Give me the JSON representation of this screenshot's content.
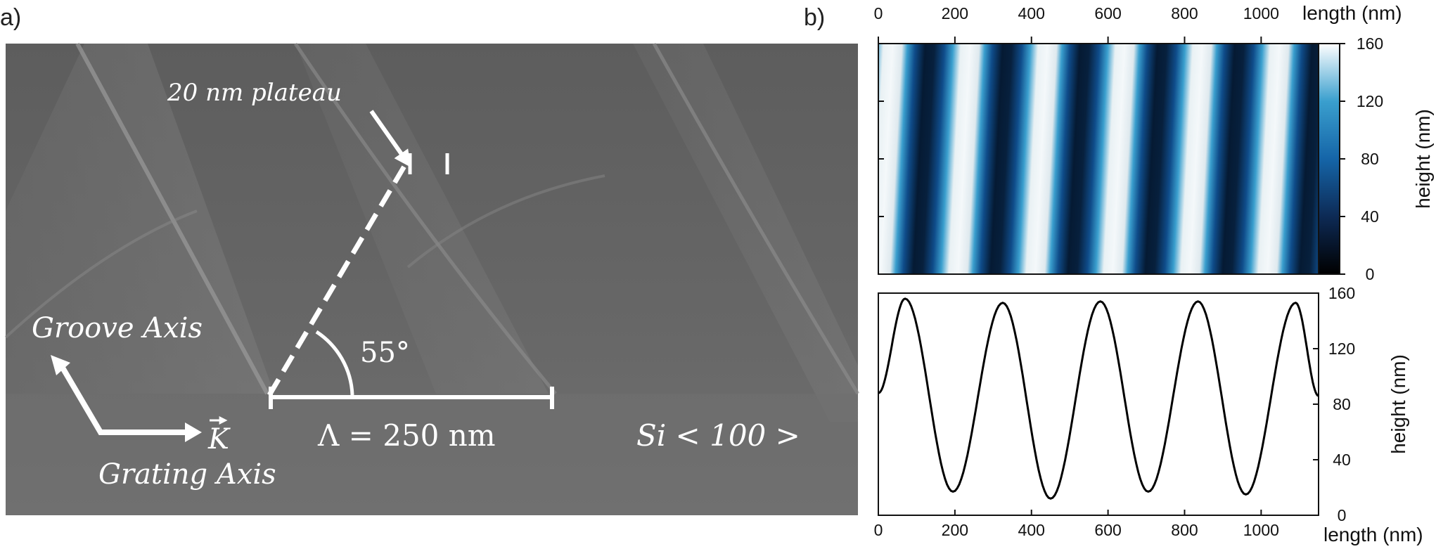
{
  "panel_a": {
    "label": "a)",
    "annotations": {
      "plateau": "20 nm plateau",
      "angle": "55°",
      "period": "Λ = 250 nm",
      "groove_axis": "Groove Axis",
      "k_vector": "K",
      "grating_axis": "Grating Axis",
      "substrate": "Si < 100 >"
    }
  },
  "panel_b": {
    "label": "b)",
    "afm_map": {
      "top_axis_label": "length (nm)",
      "x_ticks": [
        "0",
        "200",
        "400",
        "600",
        "800",
        "1000"
      ],
      "colorbar_label": "height (nm)",
      "colorbar_ticks": [
        "0",
        "40",
        "80",
        "120",
        "160"
      ],
      "colormap": [
        "#000000",
        "#0d2a55",
        "#1565a8",
        "#3a9fce",
        "#ffffff"
      ]
    },
    "profile": {
      "x_label": "length (nm)",
      "y_label": "height (nm)",
      "x_ticks": [
        "0",
        "200",
        "400",
        "600",
        "800",
        "1000"
      ],
      "y_ticks": [
        "0",
        "40",
        "80",
        "120",
        "160"
      ]
    }
  },
  "chart_data": [
    {
      "type": "heatmap",
      "xlabel": "length (nm)",
      "colorbar_label": "height (nm)",
      "xlim": [
        0,
        1150
      ],
      "zlim": [
        0,
        160
      ],
      "description_values": {
        "period_nm": 255,
        "peak_positions_nm": [
          60,
          315,
          570,
          825,
          1080
        ],
        "min_height": 10,
        "max_height": 155
      }
    },
    {
      "type": "line",
      "xlabel": "length (nm)",
      "ylabel": "height (nm)",
      "xlim": [
        0,
        1150
      ],
      "ylim": [
        0,
        160
      ],
      "series": [
        {
          "x": [
            0,
            70,
            195,
            325,
            450,
            580,
            705,
            835,
            960,
            1090,
            1150
          ],
          "values": [
            88,
            156,
            17,
            153,
            12,
            154,
            17,
            154,
            15,
            153,
            86
          ]
        }
      ]
    }
  ]
}
